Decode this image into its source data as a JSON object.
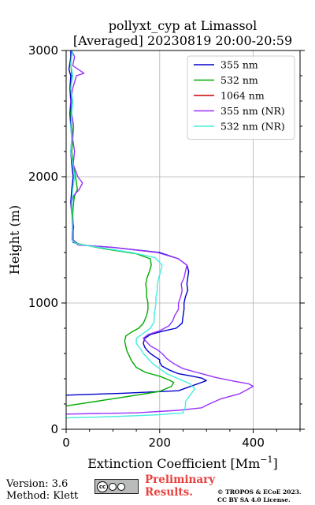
{
  "chart_data": {
    "type": "line",
    "title": "pollyxt_cyp at Limassol",
    "subtitle": "[Averaged] 20230819 20:00-20:59",
    "xlabel": "Extinction Coefficient [Mm",
    "xlabel_sup": "−1",
    "xlabel_close": "]",
    "ylabel": "Height (m)",
    "xlim": [
      0,
      500
    ],
    "ylim": [
      0,
      3000
    ],
    "xticks": [
      0,
      200,
      400
    ],
    "yticks": [
      0,
      1000,
      2000,
      3000
    ],
    "grid": true,
    "legend_position": "top-right",
    "series": [
      {
        "name": "355 nm",
        "color": "#0000cc",
        "points": [
          [
            0,
            270
          ],
          [
            120,
            285
          ],
          [
            240,
            305
          ],
          [
            300,
            385
          ],
          [
            290,
            405
          ],
          [
            270,
            420
          ],
          [
            240,
            440
          ],
          [
            220,
            470
          ],
          [
            205,
            500
          ],
          [
            200,
            530
          ],
          [
            200,
            550
          ],
          [
            192,
            570
          ],
          [
            180,
            600
          ],
          [
            172,
            630
          ],
          [
            168,
            650
          ],
          [
            165,
            680
          ],
          [
            168,
            720
          ],
          [
            180,
            750
          ],
          [
            210,
            780
          ],
          [
            235,
            800
          ],
          [
            248,
            840
          ],
          [
            250,
            900
          ],
          [
            252,
            950
          ],
          [
            252,
            1000
          ],
          [
            255,
            1050
          ],
          [
            260,
            1100
          ],
          [
            258,
            1150
          ],
          [
            260,
            1200
          ],
          [
            262,
            1250
          ],
          [
            258,
            1300
          ],
          [
            240,
            1350
          ],
          [
            200,
            1400
          ],
          [
            100,
            1440
          ],
          [
            30,
            1460
          ],
          [
            15,
            1480
          ],
          [
            14,
            1550
          ],
          [
            16,
            1600
          ],
          [
            12,
            1700
          ],
          [
            10,
            1800
          ],
          [
            12,
            1900
          ],
          [
            15,
            2000
          ],
          [
            12,
            2100
          ],
          [
            10,
            2200
          ],
          [
            12,
            2300
          ],
          [
            10,
            2400
          ],
          [
            8,
            2500
          ],
          [
            10,
            2600
          ],
          [
            8,
            2700
          ],
          [
            10,
            2800
          ],
          [
            6,
            2850
          ],
          [
            8,
            2900
          ],
          [
            10,
            2950
          ],
          [
            10,
            3000
          ]
        ]
      },
      {
        "name": "532 nm",
        "color": "#00aa00",
        "points": [
          [
            0,
            185
          ],
          [
            80,
            230
          ],
          [
            150,
            270
          ],
          [
            200,
            300
          ],
          [
            225,
            340
          ],
          [
            230,
            370
          ],
          [
            220,
            390
          ],
          [
            200,
            420
          ],
          [
            170,
            450
          ],
          [
            150,
            490
          ],
          [
            140,
            540
          ],
          [
            135,
            580
          ],
          [
            130,
            620
          ],
          [
            128,
            650
          ],
          [
            125,
            700
          ],
          [
            128,
            740
          ],
          [
            140,
            770
          ],
          [
            155,
            800
          ],
          [
            165,
            840
          ],
          [
            172,
            900
          ],
          [
            175,
            950
          ],
          [
            175,
            1000
          ],
          [
            172,
            1050
          ],
          [
            172,
            1100
          ],
          [
            170,
            1150
          ],
          [
            173,
            1200
          ],
          [
            178,
            1250
          ],
          [
            182,
            1300
          ],
          [
            180,
            1350
          ],
          [
            150,
            1390
          ],
          [
            80,
            1430
          ],
          [
            25,
            1470
          ],
          [
            15,
            1500
          ],
          [
            15,
            1600
          ],
          [
            14,
            1700
          ],
          [
            16,
            1800
          ],
          [
            18,
            1850
          ],
          [
            24,
            1900
          ],
          [
            20,
            2000
          ],
          [
            15,
            2100
          ],
          [
            12,
            2200
          ],
          [
            14,
            2300
          ],
          [
            12,
            2400
          ],
          [
            10,
            2500
          ],
          [
            12,
            2600
          ],
          [
            10,
            2700
          ],
          [
            12,
            2800
          ],
          [
            10,
            2900
          ],
          [
            12,
            3000
          ]
        ]
      },
      {
        "name": "1064 nm",
        "color": "#cc0000",
        "points": []
      },
      {
        "name": "355 nm (NR)",
        "color": "#9933ff",
        "points": [
          [
            0,
            120
          ],
          [
            150,
            130
          ],
          [
            240,
            150
          ],
          [
            290,
            170
          ],
          [
            300,
            190
          ],
          [
            330,
            240
          ],
          [
            370,
            280
          ],
          [
            400,
            340
          ],
          [
            390,
            360
          ],
          [
            360,
            380
          ],
          [
            320,
            410
          ],
          [
            280,
            450
          ],
          [
            250,
            480
          ],
          [
            230,
            520
          ],
          [
            215,
            560
          ],
          [
            205,
            600
          ],
          [
            195,
            630
          ],
          [
            180,
            660
          ],
          [
            170,
            700
          ],
          [
            165,
            720
          ],
          [
            175,
            750
          ],
          [
            200,
            780
          ],
          [
            220,
            820
          ],
          [
            228,
            860
          ],
          [
            232,
            900
          ],
          [
            240,
            950
          ],
          [
            240,
            1000
          ],
          [
            245,
            1050
          ],
          [
            248,
            1100
          ],
          [
            246,
            1150
          ],
          [
            252,
            1200
          ],
          [
            255,
            1250
          ],
          [
            258,
            1300
          ],
          [
            240,
            1350
          ],
          [
            195,
            1400
          ],
          [
            100,
            1440
          ],
          [
            25,
            1460
          ],
          [
            15,
            1500
          ],
          [
            15,
            1600
          ],
          [
            12,
            1700
          ],
          [
            12,
            1800
          ],
          [
            16,
            1850
          ],
          [
            28,
            1900
          ],
          [
            35,
            1950
          ],
          [
            25,
            2000
          ],
          [
            15,
            2100
          ],
          [
            18,
            2200
          ],
          [
            14,
            2300
          ],
          [
            16,
            2400
          ],
          [
            12,
            2500
          ],
          [
            10,
            2600
          ],
          [
            14,
            2700
          ],
          [
            22,
            2800
          ],
          [
            38,
            2820
          ],
          [
            14,
            2880
          ],
          [
            18,
            2950
          ],
          [
            12,
            3000
          ]
        ]
      },
      {
        "name": "532 nm (NR)",
        "color": "#44eedd",
        "points": [
          [
            0,
            90
          ],
          [
            100,
            100
          ],
          [
            200,
            115
          ],
          [
            250,
            130
          ],
          [
            255,
            180
          ],
          [
            255,
            220
          ],
          [
            265,
            270
          ],
          [
            275,
            320
          ],
          [
            265,
            360
          ],
          [
            240,
            400
          ],
          [
            215,
            440
          ],
          [
            200,
            480
          ],
          [
            185,
            520
          ],
          [
            175,
            560
          ],
          [
            165,
            600
          ],
          [
            158,
            640
          ],
          [
            150,
            680
          ],
          [
            150,
            720
          ],
          [
            165,
            760
          ],
          [
            180,
            800
          ],
          [
            188,
            850
          ],
          [
            188,
            900
          ],
          [
            190,
            950
          ],
          [
            192,
            1000
          ],
          [
            192,
            1050
          ],
          [
            195,
            1100
          ],
          [
            195,
            1150
          ],
          [
            198,
            1200
          ],
          [
            202,
            1250
          ],
          [
            205,
            1300
          ],
          [
            190,
            1360
          ],
          [
            140,
            1400
          ],
          [
            70,
            1440
          ],
          [
            20,
            1470
          ],
          [
            12,
            1500
          ],
          [
            13,
            1600
          ],
          [
            12,
            1700
          ],
          [
            12,
            1800
          ],
          [
            14,
            1900
          ],
          [
            18,
            2000
          ],
          [
            14,
            2100
          ],
          [
            10,
            2200
          ],
          [
            12,
            2300
          ],
          [
            10,
            2400
          ],
          [
            12,
            2500
          ],
          [
            14,
            2600
          ],
          [
            10,
            2700
          ],
          [
            14,
            2800
          ],
          [
            10,
            2900
          ],
          [
            14,
            3000
          ]
        ]
      }
    ]
  },
  "footer": {
    "version": "Version: 3.6",
    "method": "Method: Klett",
    "cc_text": "cc",
    "preliminary_line1": "Preliminary",
    "preliminary_line2": "Results.",
    "copyright_line1": "© TROPOS & ECoE 2023.",
    "copyright_line2": "CC BY SA 4.0 License."
  }
}
